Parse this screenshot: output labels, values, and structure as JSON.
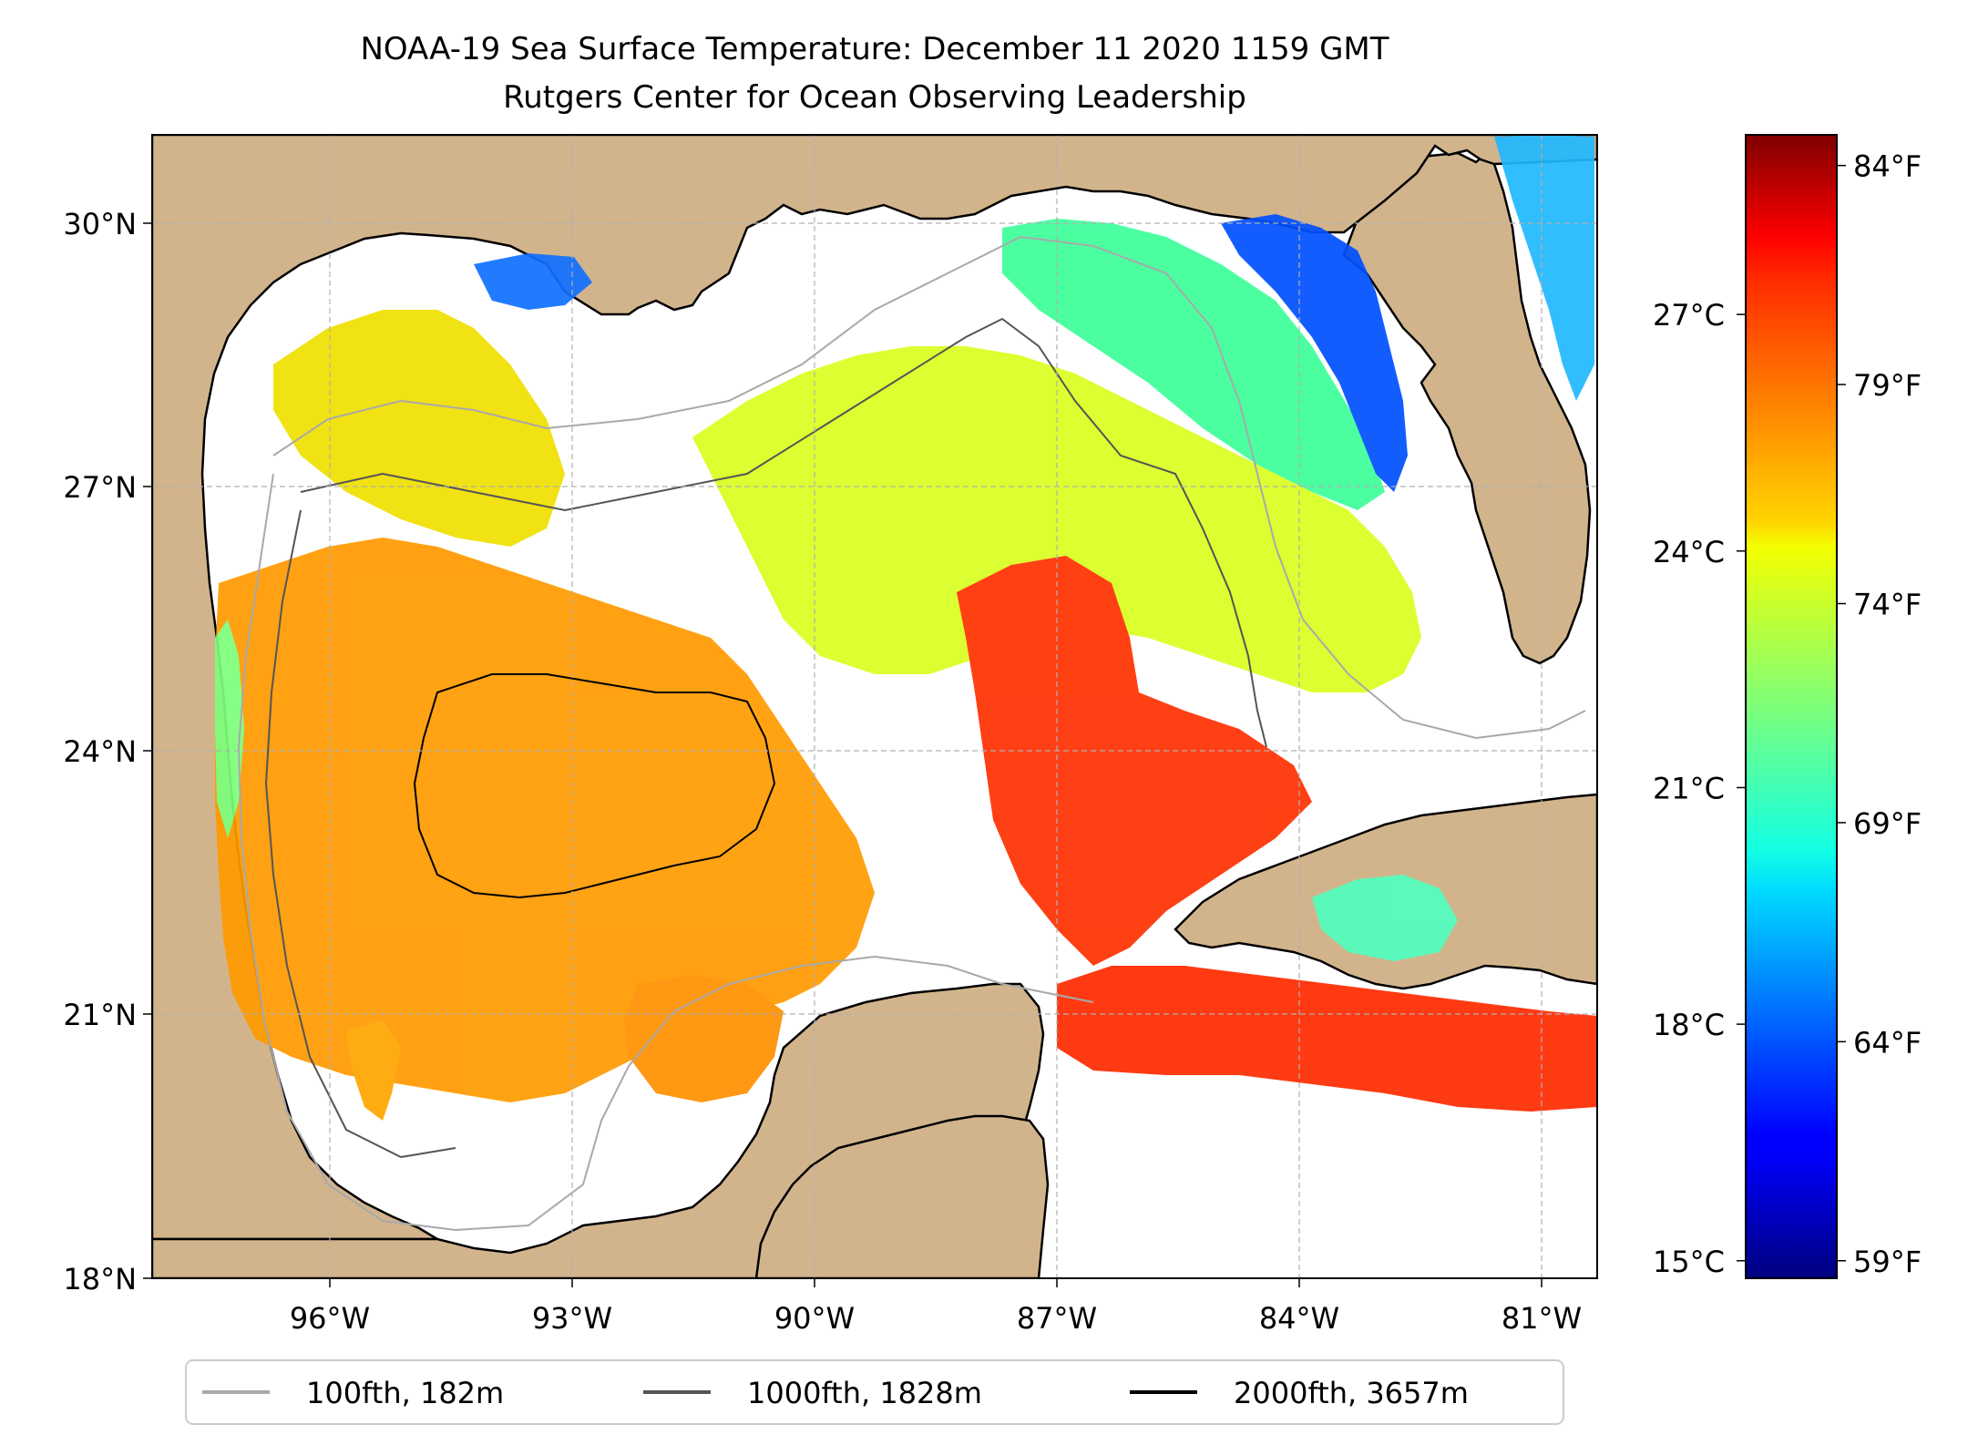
{
  "title": {
    "line1": "NOAA-19 Sea Surface Temperature: December 11 2020 1159 GMT",
    "line2": "Rutgers Center for Ocean Observing Leadership"
  },
  "map": {
    "lon_range": [
      -98.2,
      -80.3
    ],
    "lat_range": [
      18.0,
      31.0
    ],
    "lon_ticks": [
      "96°W",
      "93°W",
      "90°W",
      "87°W",
      "84°W",
      "81°W"
    ],
    "lat_ticks": [
      "18°N",
      "21°N",
      "24°N",
      "27°N",
      "30°N"
    ],
    "colors": {
      "land": "#d2b48c",
      "water_no_data": "#ffffff",
      "grid": "#b0b0b0",
      "coast": "#000000",
      "inland_water": "#8fb0e0"
    }
  },
  "colorbar": {
    "celsius_ticks": [
      "15°C",
      "18°C",
      "21°C",
      "24°C",
      "27°C"
    ],
    "fahrenheit_ticks": [
      "59°F",
      "64°F",
      "69°F",
      "74°F",
      "79°F",
      "84°F"
    ],
    "fahrenheit_values": [
      59,
      64,
      69,
      74,
      79,
      84
    ],
    "celsius_values": [
      15,
      18,
      21,
      24,
      27
    ],
    "range_f": [
      58.6,
      84.7
    ],
    "colormap": "jet"
  },
  "legend": {
    "items": [
      {
        "label": "100fth, 182m",
        "color": "#a9a9a9"
      },
      {
        "label": "1000fth, 1828m",
        "color": "#555555"
      },
      {
        "label": "2000fth, 3657m",
        "color": "#000000"
      }
    ]
  }
}
